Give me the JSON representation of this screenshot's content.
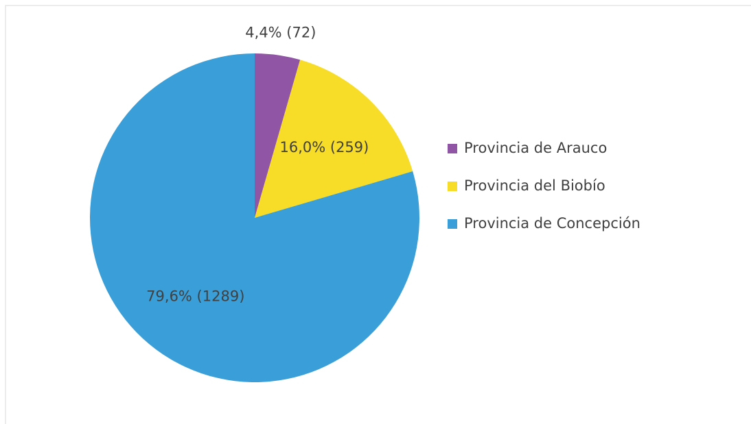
{
  "chart_data": {
    "type": "pie",
    "categories": [
      "Provincia de Arauco",
      "Provincia del Biobío",
      "Provincia de Concepción"
    ],
    "values": [
      72,
      259,
      1289
    ],
    "value_labels": [
      "4,4% (72)",
      "16,0% (259)",
      "79,6% (1289)"
    ],
    "colors": [
      "#9155a5",
      "#f7dc28",
      "#3a9fd8"
    ],
    "legend": "right"
  }
}
